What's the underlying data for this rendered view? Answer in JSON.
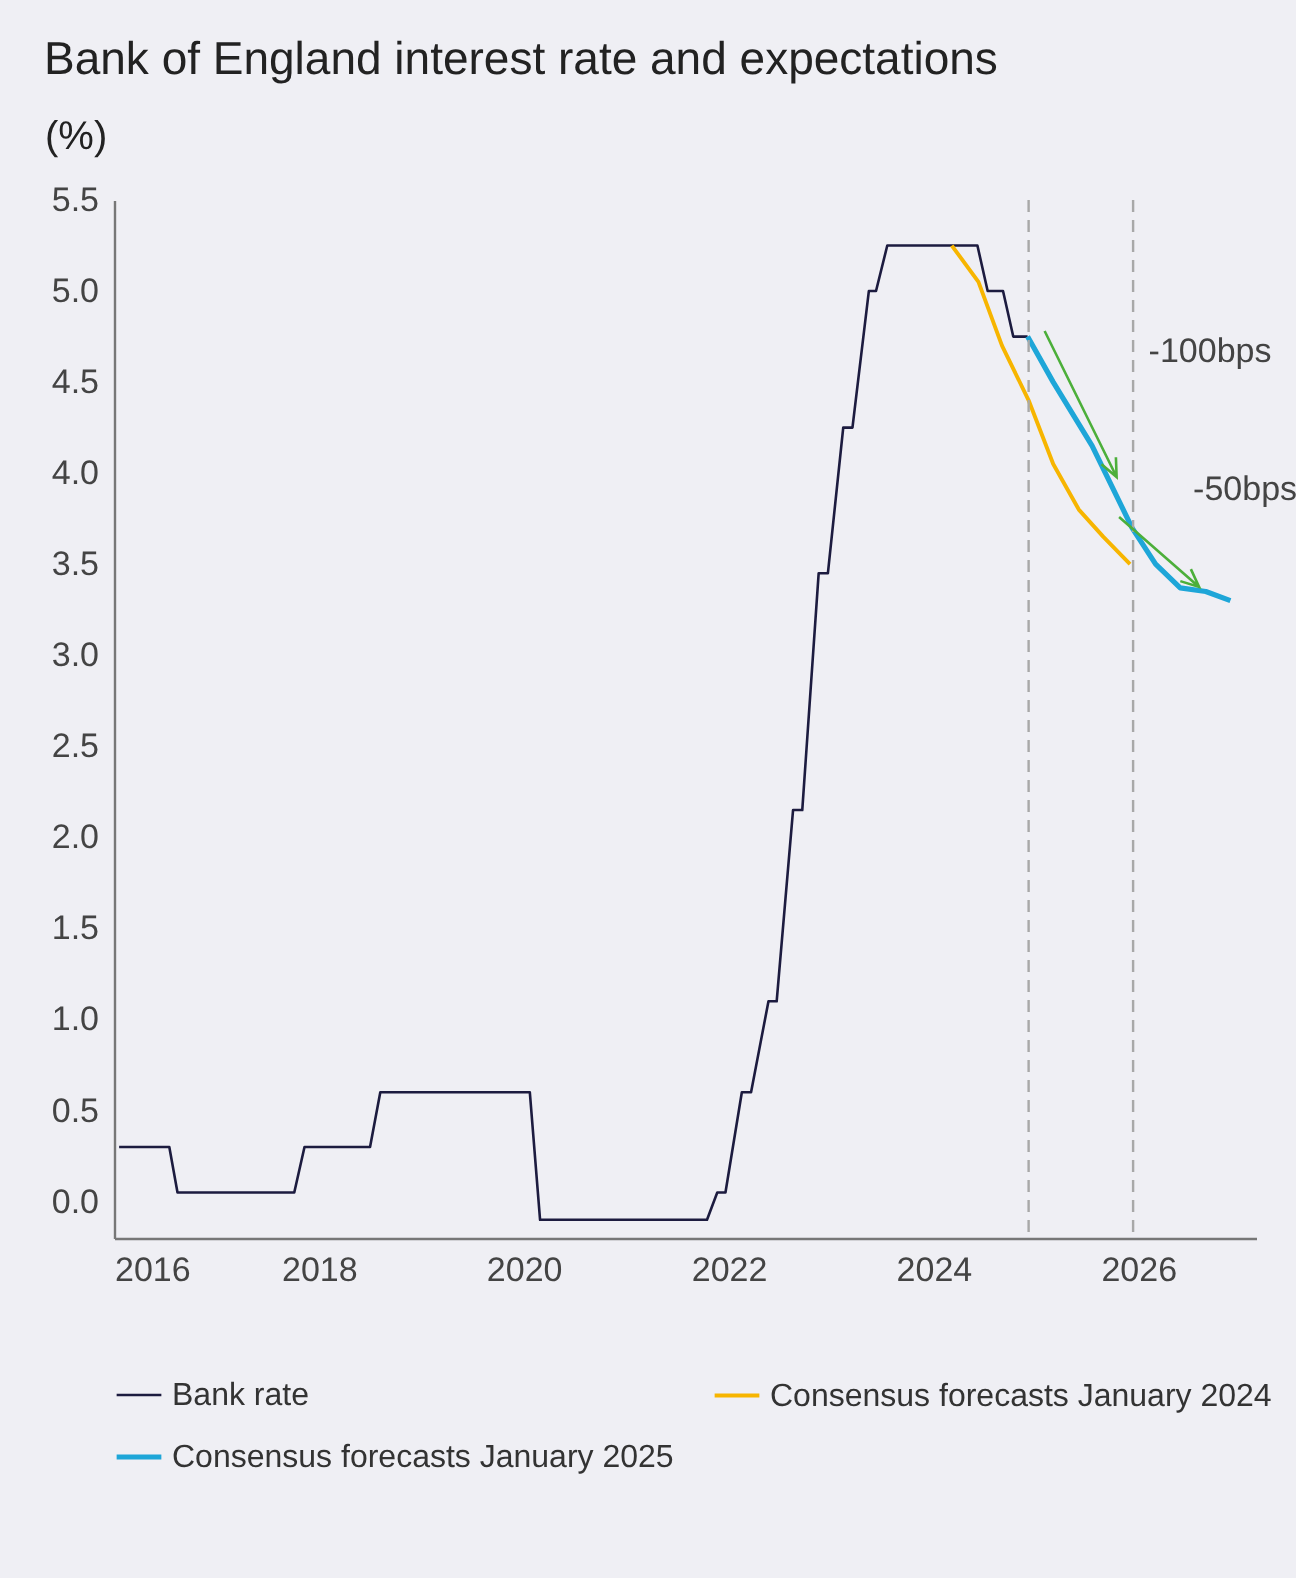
{
  "chart_data": {
    "type": "line",
    "title": "Bank of England interest rate and expectations",
    "ylabel": "(%)",
    "xlim": [
      2016,
      2027.15
    ],
    "xticks": [
      2016,
      2018,
      2020,
      2022,
      2024,
      2026
    ],
    "ylim": [
      -0.2,
      5.5
    ],
    "yticks": [
      {
        "value": 0,
        "label": "0.0"
      },
      {
        "value": 0.5,
        "label": "0.5"
      },
      {
        "value": 1,
        "label": "1.0"
      },
      {
        "value": 1.5,
        "label": "1.5"
      },
      {
        "value": 2,
        "label": "2.0"
      },
      {
        "value": 2.5,
        "label": "2.5"
      },
      {
        "value": 3,
        "label": "3.0"
      },
      {
        "value": 3.5,
        "label": "3.5"
      },
      {
        "value": 4,
        "label": "4.0"
      },
      {
        "value": 4.5,
        "label": "4.5"
      },
      {
        "value": 5,
        "label": "5.0"
      },
      {
        "value": 5.5,
        "label": "5.5"
      }
    ],
    "grid": false,
    "legend": "bottom",
    "series": [
      {
        "name": "Bank rate",
        "color": "#1c1b3f",
        "x": [
          2016.05,
          2016.54,
          2016.62,
          2017.76,
          2017.86,
          2018.5,
          2018.6,
          2020.06,
          2020.16,
          2021.79,
          2021.89,
          2021.97,
          2022.13,
          2022.22,
          2022.39,
          2022.47,
          2022.63,
          2022.72,
          2022.88,
          2022.97,
          2023.12,
          2023.21,
          2023.37,
          2023.44,
          2023.55,
          2024.43,
          2024.53,
          2024.68,
          2024.78,
          2024.92
        ],
        "values": [
          0.3,
          0.3,
          0.05,
          0.05,
          0.3,
          0.3,
          0.6,
          0.6,
          -0.1,
          -0.1,
          0.05,
          0.05,
          0.6,
          0.6,
          1.1,
          1.1,
          2.15,
          2.15,
          3.45,
          3.45,
          4.25,
          4.25,
          5.0,
          5.0,
          5.25,
          5.25,
          5.0,
          5.0,
          4.75,
          4.75
        ]
      },
      {
        "name": "Consensus forecasts January 2024",
        "color": "#f7b500",
        "x": [
          2024.18,
          2024.44,
          2024.67,
          2024.93,
          2025.17,
          2025.42,
          2025.66,
          2025.92
        ],
        "values": [
          5.25,
          5.05,
          4.7,
          4.4,
          4.05,
          3.8,
          3.65,
          3.5
        ]
      },
      {
        "name": "Consensus forecasts January 2025",
        "color": "#1ea6d8",
        "x": [
          2024.92,
          2025.17,
          2025.55,
          2025.94,
          2026.17,
          2026.41,
          2026.66,
          2026.9
        ],
        "values": [
          4.75,
          4.5,
          4.15,
          3.7,
          3.5,
          3.37,
          3.35,
          3.3
        ]
      }
    ],
    "ref_lines": [
      {
        "axis": "x",
        "value": 2024.93,
        "color": "#a8a8a8",
        "line_style": "dashed"
      },
      {
        "axis": "x",
        "value": 2025.95,
        "color": "#a8a8a8",
        "line_style": "dashed"
      }
    ],
    "annotations": [
      "-100bps",
      "-50bps"
    ]
  }
}
